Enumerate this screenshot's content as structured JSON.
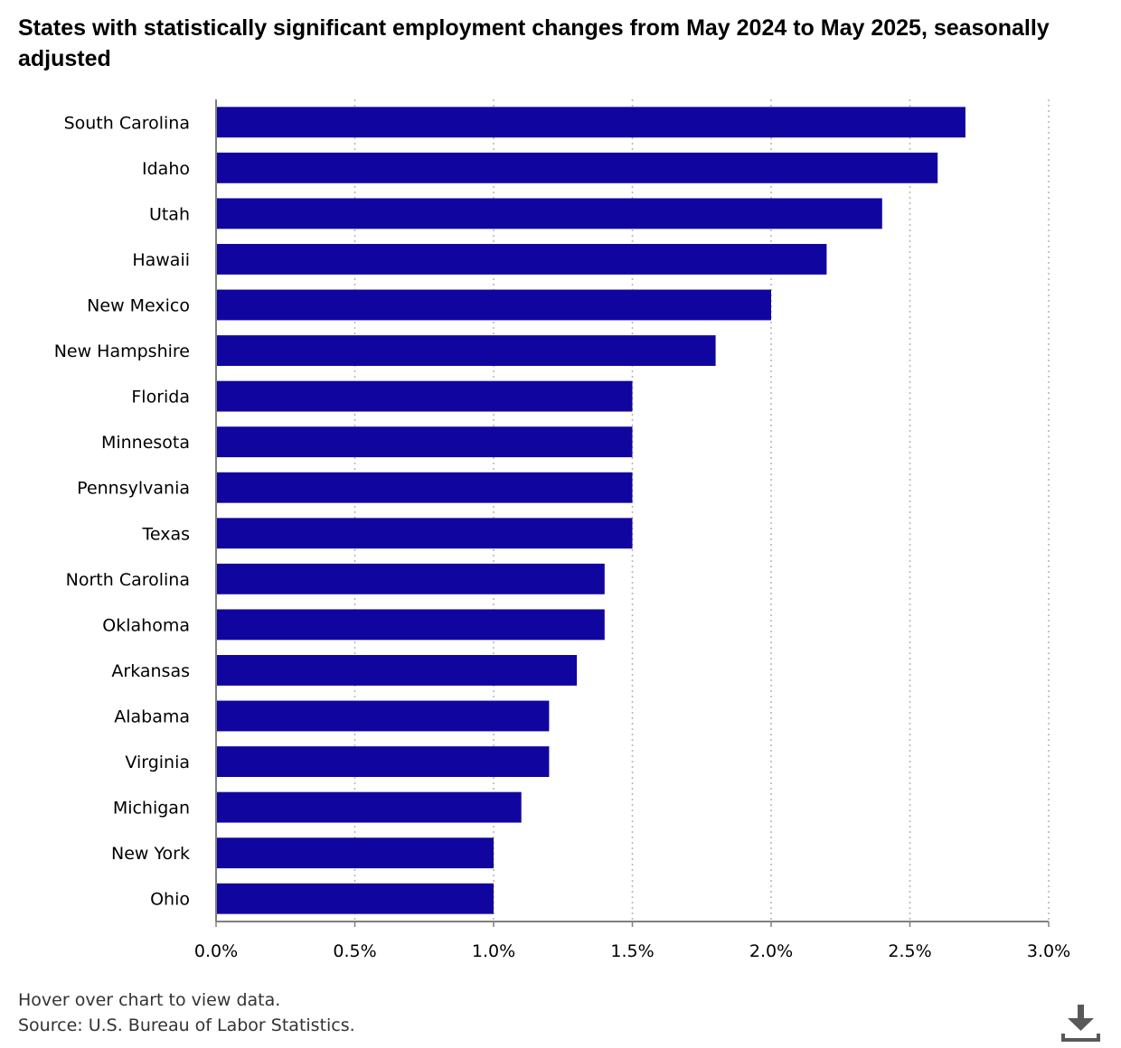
{
  "title": "States with statistically significant employment changes from May 2024 to May 2025, seasonally adjusted",
  "footer": {
    "hover_note": "Hover over chart to view data.",
    "source": "Source: U.S. Bureau of Labor Statistics."
  },
  "download_icon": "download-icon",
  "colors": {
    "bar": "#10069f",
    "axis": "#7f7f7f",
    "grid": "#b4b4b4",
    "text": "#000000"
  },
  "chart_data": {
    "type": "bar",
    "orientation": "horizontal",
    "title": "States with statistically significant employment changes from May 2024 to May 2025, seasonally adjusted",
    "categories": [
      "South Carolina",
      "Idaho",
      "Utah",
      "Hawaii",
      "New Mexico",
      "New Hampshire",
      "Florida",
      "Minnesota",
      "Pennsylvania",
      "Texas",
      "North Carolina",
      "Oklahoma",
      "Arkansas",
      "Alabama",
      "Virginia",
      "Michigan",
      "New York",
      "Ohio"
    ],
    "values": [
      2.7,
      2.6,
      2.4,
      2.2,
      2.0,
      1.8,
      1.5,
      1.5,
      1.5,
      1.5,
      1.4,
      1.4,
      1.3,
      1.2,
      1.2,
      1.1,
      1.0,
      1.0
    ],
    "unit": "%",
    "xlim": [
      0,
      3.0
    ],
    "xticks": [
      "0.0%",
      "0.5%",
      "1.0%",
      "1.5%",
      "2.0%",
      "2.5%",
      "3.0%"
    ],
    "xlabel": "",
    "ylabel": "",
    "grid": "vertical dotted",
    "legend": "none"
  }
}
